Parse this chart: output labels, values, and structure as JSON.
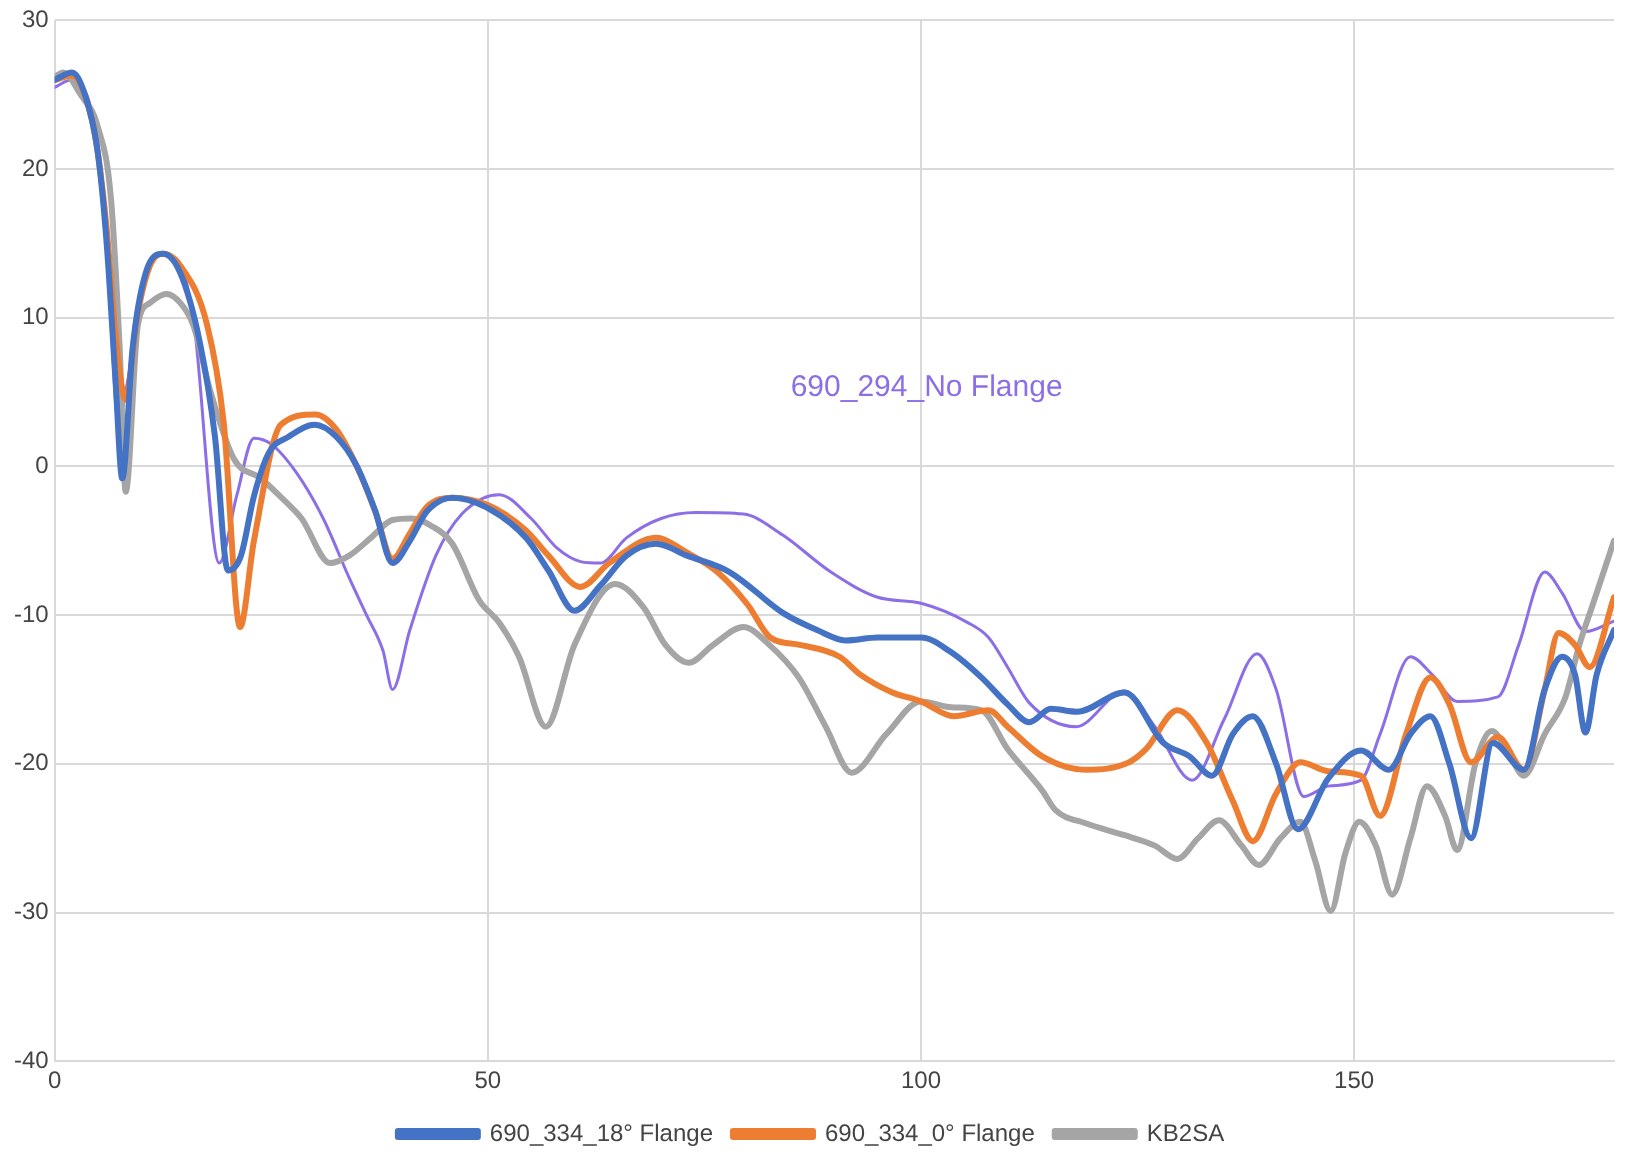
{
  "chart_data": {
    "type": "line",
    "xlim": [
      0,
      180
    ],
    "xticks": [
      0,
      50,
      100,
      150
    ],
    "ylim": [
      -40,
      30
    ],
    "yticks": [
      -40,
      -30,
      -20,
      -10,
      0,
      10,
      20,
      30
    ],
    "grid": true,
    "legend": "bottom",
    "marker": "none",
    "line_style": "solid",
    "series": [
      {
        "name": "690_334_18° Flange",
        "color": "#4472c4",
        "x": [
          0,
          2,
          4,
          5,
          6,
          7,
          7.8,
          9,
          10.5,
          12.5,
          14.5,
          16.7,
          18.5,
          20,
          21.5,
          23,
          24.7,
          27,
          30,
          32.5,
          34.8,
          37,
          39,
          41,
          43,
          45.9,
          50,
          54.4,
          57,
          60,
          63,
          66,
          69.4,
          73,
          77.9,
          84.2,
          88,
          91.3,
          95,
          100,
          103.5,
          107,
          110,
          112.5,
          115,
          118,
          123.5,
          128,
          131,
          133.6,
          136,
          138.3,
          141,
          143.5,
          147,
          150.8,
          154,
          156.5,
          158.8,
          161,
          163.5,
          166,
          169.6,
          172,
          174,
          175.5,
          176.7,
          178,
          180
        ],
        "values": [
          26,
          26.5,
          24,
          21,
          15,
          6,
          -0.8,
          8,
          13,
          14.3,
          13,
          8.5,
          2,
          -7,
          -6,
          -2,
          0.9,
          2,
          2.8,
          2,
          0.1,
          -3,
          -6.5,
          -5,
          -3,
          -2.1,
          -2.8,
          -4.8,
          -7,
          -9.7,
          -8,
          -6,
          -5.2,
          -6,
          -7.1,
          -9.9,
          -11,
          -11.7,
          -11.5,
          -11.5,
          -12.5,
          -14.2,
          -16,
          -17.2,
          -16.3,
          -16.5,
          -15.2,
          -18.6,
          -19.5,
          -20.8,
          -18,
          -16.8,
          -20,
          -24.4,
          -21,
          -19.1,
          -20.4,
          -18,
          -16.8,
          -20,
          -25,
          -18.6,
          -20.4,
          -15,
          -12.8,
          -14,
          -17.9,
          -14,
          -11
        ]
      },
      {
        "name": "690_334_0° Flange",
        "color": "#ed7d31",
        "x": [
          0,
          2,
          4,
          5,
          6,
          7,
          8.2,
          9.5,
          11,
          12.5,
          14.5,
          17.6,
          19.5,
          21.4,
          23,
          26.1,
          30.1,
          32.5,
          34.8,
          37,
          39,
          41,
          43,
          45.9,
          50,
          54.4,
          57,
          60.7,
          64,
          69.4,
          73,
          76.5,
          80,
          82.6,
          86,
          90.6,
          93,
          96.7,
          100,
          103.8,
          107.8,
          110,
          114,
          119,
          124,
          126,
          129.6,
          133,
          136,
          138.3,
          141,
          143.8,
          147,
          150.8,
          153,
          156,
          158.8,
          161,
          163.5,
          166.6,
          169.6,
          172,
          173.6,
          175.5,
          177.2,
          180
        ],
        "values": [
          26,
          26.3,
          24,
          21,
          16,
          9,
          4.5,
          10,
          13.5,
          14.3,
          13.5,
          9.5,
          3,
          -10.8,
          -5,
          2.8,
          3.5,
          2.5,
          0.1,
          -3,
          -6.2,
          -4.5,
          -2.7,
          -2.1,
          -2.6,
          -4.3,
          -6,
          -8.1,
          -6.5,
          -4.8,
          -5.8,
          -7.1,
          -9.3,
          -11.5,
          -12,
          -12.8,
          -14,
          -15.2,
          -15.8,
          -16.8,
          -16.4,
          -17.5,
          -19.5,
          -20.4,
          -19.9,
          -19,
          -16.4,
          -18.6,
          -22.5,
          -25.2,
          -22,
          -19.9,
          -20.5,
          -20.8,
          -23.5,
          -18,
          -14.2,
          -16,
          -19.9,
          -18.2,
          -20.4,
          -15,
          -11.2,
          -12,
          -13.5,
          -8.8
        ]
      },
      {
        "name": "KB2SA",
        "color": "#a5a5a5",
        "x": [
          0,
          1,
          3,
          5,
          6.5,
          7.5,
          8.2,
          9.6,
          11,
          12.9,
          14.5,
          16,
          18,
          20.7,
          23.8,
          26,
          28.5,
          31.8,
          34,
          36.5,
          39,
          41.2,
          43.5,
          45.9,
          49,
          51.3,
          53.6,
          56.7,
          60,
          64.7,
          68,
          70.5,
          73.2,
          76,
          79.5,
          82.5,
          85.9,
          89,
          92,
          96,
          100,
          103.5,
          107,
          110,
          114,
          115.5,
          119,
          123.5,
          127,
          129.6,
          132,
          134.4,
          137,
          139,
          141.5,
          143.8,
          145.5,
          147.3,
          149,
          150.6,
          152.5,
          154.4,
          156.5,
          158.4,
          160.5,
          161.9,
          164,
          165.9,
          168,
          169.6,
          172,
          174.4,
          176,
          177.6,
          180
        ],
        "values": [
          26.2,
          26.5,
          25,
          22.8,
          18,
          8,
          -1.7,
          9.5,
          11,
          11.6,
          11,
          9.5,
          5,
          0.5,
          -0.8,
          -2,
          -3.5,
          -6.5,
          -6,
          -4.8,
          -3.6,
          -3.5,
          -4,
          -5.2,
          -9,
          -10.5,
          -12.8,
          -17.5,
          -12,
          -7.9,
          -9.5,
          -12,
          -13.2,
          -12,
          -10.8,
          -12,
          -14.2,
          -17.5,
          -20.6,
          -18,
          -15.8,
          -16.2,
          -16.4,
          -19,
          -21.8,
          -23.1,
          -24,
          -24.8,
          -25.5,
          -26.4,
          -25,
          -23.8,
          -25.5,
          -26.8,
          -25,
          -23.9,
          -26.5,
          -29.9,
          -26,
          -23.9,
          -25.5,
          -28.8,
          -25,
          -21.5,
          -23.5,
          -25.8,
          -20,
          -17.8,
          -19.5,
          -20.8,
          -18,
          -15.5,
          -12,
          -9.2,
          -5
        ]
      },
      {
        "color": "#8c6fe6",
        "x": [
          0,
          2,
          4,
          5,
          6,
          7.3,
          8.5,
          10,
          12,
          14,
          16,
          19,
          21,
          23,
          25,
          28,
          31,
          34,
          36,
          37.9,
          39,
          41,
          44,
          47,
          51.3,
          55,
          58,
          60.7,
          63,
          66,
          70,
          74,
          79.5,
          84,
          89.6,
          95,
          100,
          105.4,
          107.8,
          110,
          112.5,
          117.9,
          123.5,
          127,
          131.3,
          135,
          138.8,
          141,
          144.2,
          147,
          150.8,
          153,
          156.5,
          159,
          161.9,
          166.6,
          169,
          172,
          174,
          176.7,
          180
        ],
        "values": [
          25.5,
          26,
          24.5,
          21.5,
          16,
          3.2,
          6,
          12,
          14.3,
          14,
          10,
          -6.5,
          -2,
          1.9,
          1.5,
          -0.5,
          -3.5,
          -7.5,
          -10,
          -12.4,
          -15,
          -11,
          -6,
          -3.2,
          -1.9,
          -3.5,
          -5.5,
          -6.4,
          -6.5,
          -4.8,
          -3.5,
          -3.1,
          -3.2,
          -4.6,
          -7.1,
          -8.8,
          -9.2,
          -10.5,
          -11.5,
          -13.5,
          -15.9,
          -17.5,
          -15.1,
          -17.5,
          -21.1,
          -17,
          -12.6,
          -15,
          -22.2,
          -21.5,
          -21.1,
          -18,
          -12.8,
          -14,
          -15.8,
          -15.5,
          -12,
          -7.1,
          -8.5,
          -11.1,
          -10.4
        ]
      }
    ],
    "annotations": [
      "690_294_No Flange"
    ]
  }
}
